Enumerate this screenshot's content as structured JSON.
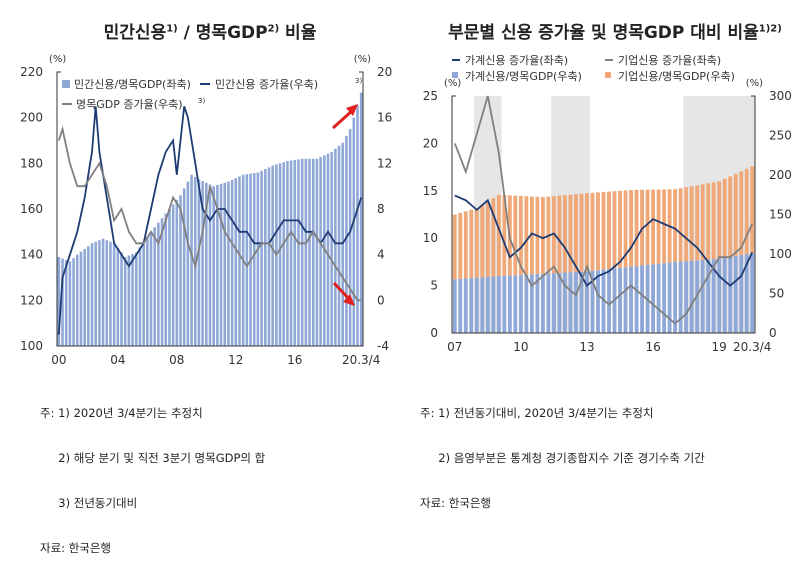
{
  "chart_data": [
    {
      "type": "bar+line",
      "title": "민간신용",
      "title_sup1": "1)",
      "title_mid": " / 명목GDP",
      "title_sup2": "2)",
      "title_end": " 비율",
      "ylabel_left": "(%)",
      "ylabel_right": "(%)",
      "ylim_left": [
        100,
        220
      ],
      "ylim_right": [
        -4,
        20
      ],
      "yticks_left": [
        "100",
        "120",
        "140",
        "160",
        "180",
        "200",
        "220"
      ],
      "yticks_right": [
        "-4",
        "0",
        "4",
        "8",
        "12",
        "16",
        "20"
      ],
      "xticks": [
        {
          "q": "2000Q1",
          "label": "00"
        },
        {
          "q": "2004Q1",
          "label": "04"
        },
        {
          "q": "2008Q1",
          "label": "08"
        },
        {
          "q": "2012Q1",
          "label": "12"
        },
        {
          "q": "2016Q1",
          "label": "16"
        },
        {
          "q": "2020Q3",
          "label": "20.3/4"
        }
      ],
      "xrange": [
        "2000Q1",
        "2020Q3"
      ],
      "legend": [
        "민간신용/명목GDP(좌축)",
        "민간신용 증가율(우축)",
        "명목GDP 증가율(우축)"
      ],
      "legend_sup": "3)",
      "series": [
        {
          "name": "민간신용/명목GDP(좌축)",
          "kind": "bar",
          "axis": "left",
          "color": "#8fa8d8",
          "points": [
            [
              "2000Q1",
              139
            ],
            [
              "2000Q4",
              137
            ],
            [
              "2001Q2",
              140
            ],
            [
              "2002Q2",
              145
            ],
            [
              "2003Q1",
              147
            ],
            [
              "2003Q4",
              145
            ],
            [
              "2004Q3",
              139
            ],
            [
              "2005Q2",
              141
            ],
            [
              "2006Q2",
              150
            ],
            [
              "2007Q2",
              158
            ],
            [
              "2008Q2",
              166
            ],
            [
              "2009Q1",
              175
            ],
            [
              "2009Q3",
              173
            ],
            [
              "2010Q3",
              170
            ],
            [
              "2011Q3",
              172
            ],
            [
              "2012Q3",
              175
            ],
            [
              "2013Q3",
              176
            ],
            [
              "2014Q3",
              179
            ],
            [
              "2015Q3",
              181
            ],
            [
              "2016Q3",
              182
            ],
            [
              "2017Q3",
              182
            ],
            [
              "2018Q3",
              185
            ],
            [
              "2019Q2",
              189
            ],
            [
              "2019Q4",
              195
            ],
            [
              "2020Q1",
              200
            ],
            [
              "2020Q3",
              211
            ]
          ]
        },
        {
          "name": "민간신용 증가율(우축)",
          "kind": "line",
          "axis": "right",
          "color": "#1f3b73",
          "points": [
            [
              "2000Q1",
              -3
            ],
            [
              "2000Q2",
              2
            ],
            [
              "2000Q4",
              4
            ],
            [
              "2001Q2",
              6
            ],
            [
              "2001Q4",
              9
            ],
            [
              "2002Q2",
              13
            ],
            [
              "2002Q3",
              17
            ],
            [
              "2002Q4",
              13
            ],
            [
              "2003Q2",
              9
            ],
            [
              "2003Q4",
              5
            ],
            [
              "2004Q2",
              4
            ],
            [
              "2004Q4",
              3
            ],
            [
              "2005Q2",
              4
            ],
            [
              "2005Q4",
              5
            ],
            [
              "2006Q2",
              8
            ],
            [
              "2006Q4",
              11
            ],
            [
              "2007Q2",
              13
            ],
            [
              "2007Q4",
              14
            ],
            [
              "2008Q1",
              11
            ],
            [
              "2008Q3",
              17
            ],
            [
              "2008Q4",
              16
            ],
            [
              "2009Q2",
              12
            ],
            [
              "2009Q4",
              8
            ],
            [
              "2010Q2",
              7
            ],
            [
              "2010Q4",
              8
            ],
            [
              "2011Q2",
              8
            ],
            [
              "2011Q4",
              7
            ],
            [
              "2012Q2",
              6
            ],
            [
              "2012Q4",
              6
            ],
            [
              "2013Q2",
              5
            ],
            [
              "2013Q4",
              5
            ],
            [
              "2014Q2",
              5
            ],
            [
              "2014Q4",
              6
            ],
            [
              "2015Q2",
              7
            ],
            [
              "2015Q4",
              7
            ],
            [
              "2016Q2",
              7
            ],
            [
              "2016Q4",
              6
            ],
            [
              "2017Q2",
              6
            ],
            [
              "2017Q4",
              5
            ],
            [
              "2018Q2",
              6
            ],
            [
              "2018Q4",
              5
            ],
            [
              "2019Q2",
              5
            ],
            [
              "2019Q4",
              6
            ],
            [
              "2020Q1",
              7
            ],
            [
              "2020Q3",
              9
            ]
          ]
        },
        {
          "name": "명목GDP 증가율(우축)",
          "kind": "line",
          "axis": "right",
          "color": "#808080",
          "points": [
            [
              "2000Q1",
              14
            ],
            [
              "2000Q2",
              15
            ],
            [
              "2000Q4",
              12
            ],
            [
              "2001Q2",
              10
            ],
            [
              "2001Q4",
              10
            ],
            [
              "2002Q2",
              11
            ],
            [
              "2002Q4",
              12
            ],
            [
              "2003Q2",
              10
            ],
            [
              "2003Q4",
              7
            ],
            [
              "2004Q2",
              8
            ],
            [
              "2004Q4",
              6
            ],
            [
              "2005Q2",
              5
            ],
            [
              "2005Q4",
              5
            ],
            [
              "2006Q2",
              6
            ],
            [
              "2006Q4",
              5
            ],
            [
              "2007Q2",
              7
            ],
            [
              "2007Q4",
              9
            ],
            [
              "2008Q2",
              8
            ],
            [
              "2008Q4",
              5
            ],
            [
              "2009Q2",
              3
            ],
            [
              "2009Q4",
              6
            ],
            [
              "2010Q2",
              10
            ],
            [
              "2010Q4",
              8
            ],
            [
              "2011Q2",
              6
            ],
            [
              "2011Q4",
              5
            ],
            [
              "2012Q2",
              4
            ],
            [
              "2012Q4",
              3
            ],
            [
              "2013Q2",
              4
            ],
            [
              "2013Q4",
              5
            ],
            [
              "2014Q2",
              5
            ],
            [
              "2014Q4",
              4
            ],
            [
              "2015Q2",
              5
            ],
            [
              "2015Q4",
              6
            ],
            [
              "2016Q2",
              5
            ],
            [
              "2016Q4",
              5
            ],
            [
              "2017Q2",
              6
            ],
            [
              "2017Q4",
              5
            ],
            [
              "2018Q2",
              4
            ],
            [
              "2018Q4",
              3
            ],
            [
              "2019Q2",
              2
            ],
            [
              "2019Q4",
              1
            ],
            [
              "2020Q2",
              0
            ],
            [
              "2020Q3",
              0
            ]
          ]
        }
      ],
      "annotations": [
        {
          "kind": "arrow-up",
          "color": "#e02020"
        },
        {
          "kind": "arrow-down",
          "color": "#e02020"
        }
      ]
    },
    {
      "type": "stacked-bar+line",
      "title": "부문별 신용 증가율 및 명목GDP 대비 비율",
      "title_sup": "1)2)",
      "ylabel_left": "(%)",
      "ylabel_right": "(%)",
      "ylim_left": [
        0,
        25
      ],
      "ylim_right": [
        0,
        300
      ],
      "yticks_left": [
        "0",
        "5",
        "10",
        "15",
        "20",
        "25"
      ],
      "yticks_right": [
        "0",
        "50",
        "100",
        "150",
        "200",
        "250",
        "300"
      ],
      "xticks": [
        {
          "q": "2007Q1",
          "label": "07"
        },
        {
          "q": "2010Q1",
          "label": "10"
        },
        {
          "q": "2013Q1",
          "label": "13"
        },
        {
          "q": "2016Q1",
          "label": "16"
        },
        {
          "q": "2019Q1",
          "label": "19"
        },
        {
          "q": "2020Q3",
          "label": "20.3/4"
        }
      ],
      "xrange": [
        "2007Q1",
        "2020Q3"
      ],
      "shaded": [
        [
          "2008Q1",
          "2009Q1"
        ],
        [
          "2011Q3",
          "2013Q1"
        ],
        [
          "2017Q3",
          "2020Q3"
        ]
      ],
      "shade_color": "#e6e6e6",
      "legend": [
        "가계신용 증가율(좌축)",
        "기업신용 증가율(좌축)",
        "가계신용/명목GDP(우축)",
        "기업신용/명목GDP(우축)"
      ],
      "series": [
        {
          "name": "가계신용/명목GDP(우축)",
          "kind": "bar",
          "axis": "right",
          "color": "#8fa8d8",
          "points": [
            [
              "2007Q1",
              68
            ],
            [
              "2009Q1",
              72
            ],
            [
              "2011Q1",
              75
            ],
            [
              "2013Q1",
              78
            ],
            [
              "2015Q1",
              84
            ],
            [
              "2017Q1",
              90
            ],
            [
              "2019Q1",
              94
            ],
            [
              "2020Q3",
              101
            ]
          ]
        },
        {
          "name": "기업신용/명목GDP(우축)",
          "kind": "bar",
          "axis": "right",
          "color": "#f0a878",
          "points": [
            [
              "2007Q1",
              82
            ],
            [
              "2008Q1",
              88
            ],
            [
              "2009Q1",
              103
            ],
            [
              "2010Q1",
              100
            ],
            [
              "2011Q1",
              97
            ],
            [
              "2013Q1",
              99
            ],
            [
              "2015Q1",
              97
            ],
            [
              "2017Q1",
              92
            ],
            [
              "2019Q1",
              98
            ],
            [
              "2020Q3",
              110
            ]
          ]
        },
        {
          "name": "가계신용 증가율(좌축)",
          "kind": "line",
          "axis": "left",
          "color": "#1f3b73",
          "points": [
            [
              "2007Q1",
              14.5
            ],
            [
              "2007Q3",
              14
            ],
            [
              "2008Q1",
              13
            ],
            [
              "2008Q3",
              14
            ],
            [
              "2009Q1",
              11
            ],
            [
              "2009Q3",
              8
            ],
            [
              "2010Q1",
              9
            ],
            [
              "2010Q3",
              10.5
            ],
            [
              "2011Q1",
              10
            ],
            [
              "2011Q3",
              10.5
            ],
            [
              "2012Q1",
              9
            ],
            [
              "2012Q3",
              7
            ],
            [
              "2013Q1",
              5
            ],
            [
              "2013Q3",
              6
            ],
            [
              "2014Q1",
              6.5
            ],
            [
              "2014Q3",
              7.5
            ],
            [
              "2015Q1",
              9
            ],
            [
              "2015Q3",
              11
            ],
            [
              "2016Q1",
              12
            ],
            [
              "2016Q3",
              11.5
            ],
            [
              "2017Q1",
              11
            ],
            [
              "2017Q3",
              10
            ],
            [
              "2018Q1",
              9
            ],
            [
              "2018Q3",
              7.5
            ],
            [
              "2019Q1",
              6
            ],
            [
              "2019Q3",
              5
            ],
            [
              "2020Q1",
              6
            ],
            [
              "2020Q3",
              8.5
            ]
          ]
        },
        {
          "name": "기업신용 증가율(좌축)",
          "kind": "line",
          "axis": "left",
          "color": "#808080",
          "points": [
            [
              "2007Q1",
              20
            ],
            [
              "2007Q3",
              17
            ],
            [
              "2008Q1",
              21
            ],
            [
              "2008Q3",
              25
            ],
            [
              "2009Q1",
              19
            ],
            [
              "2009Q3",
              10
            ],
            [
              "2010Q1",
              7
            ],
            [
              "2010Q3",
              5
            ],
            [
              "2011Q1",
              6
            ],
            [
              "2011Q3",
              7
            ],
            [
              "2012Q1",
              5
            ],
            [
              "2012Q3",
              4
            ],
            [
              "2013Q1",
              7
            ],
            [
              "2013Q3",
              4
            ],
            [
              "2014Q1",
              3
            ],
            [
              "2014Q3",
              4
            ],
            [
              "2015Q1",
              5
            ],
            [
              "2015Q3",
              4
            ],
            [
              "2016Q1",
              3
            ],
            [
              "2016Q3",
              2
            ],
            [
              "2017Q1",
              1
            ],
            [
              "2017Q3",
              2
            ],
            [
              "2018Q1",
              4
            ],
            [
              "2018Q3",
              6
            ],
            [
              "2019Q1",
              8
            ],
            [
              "2019Q3",
              8
            ],
            [
              "2020Q1",
              9
            ],
            [
              "2020Q3",
              11.5
            ]
          ]
        }
      ]
    }
  ],
  "notes_left": [
    "주: 1) 2020년 3/4분기는 추정치",
    "     2) 해당 분기 및 직전 3분기 명목GDP의 합",
    "     3) 전년동기대비",
    "자료: 한국은행"
  ],
  "notes_right": [
    "주: 1) 전년동기대비, 2020년 3/4분기는 추정치",
    "     2) 음영부분은 통계청 경기종합지수 기준 경기수축 기간",
    "자료: 한국은행"
  ]
}
